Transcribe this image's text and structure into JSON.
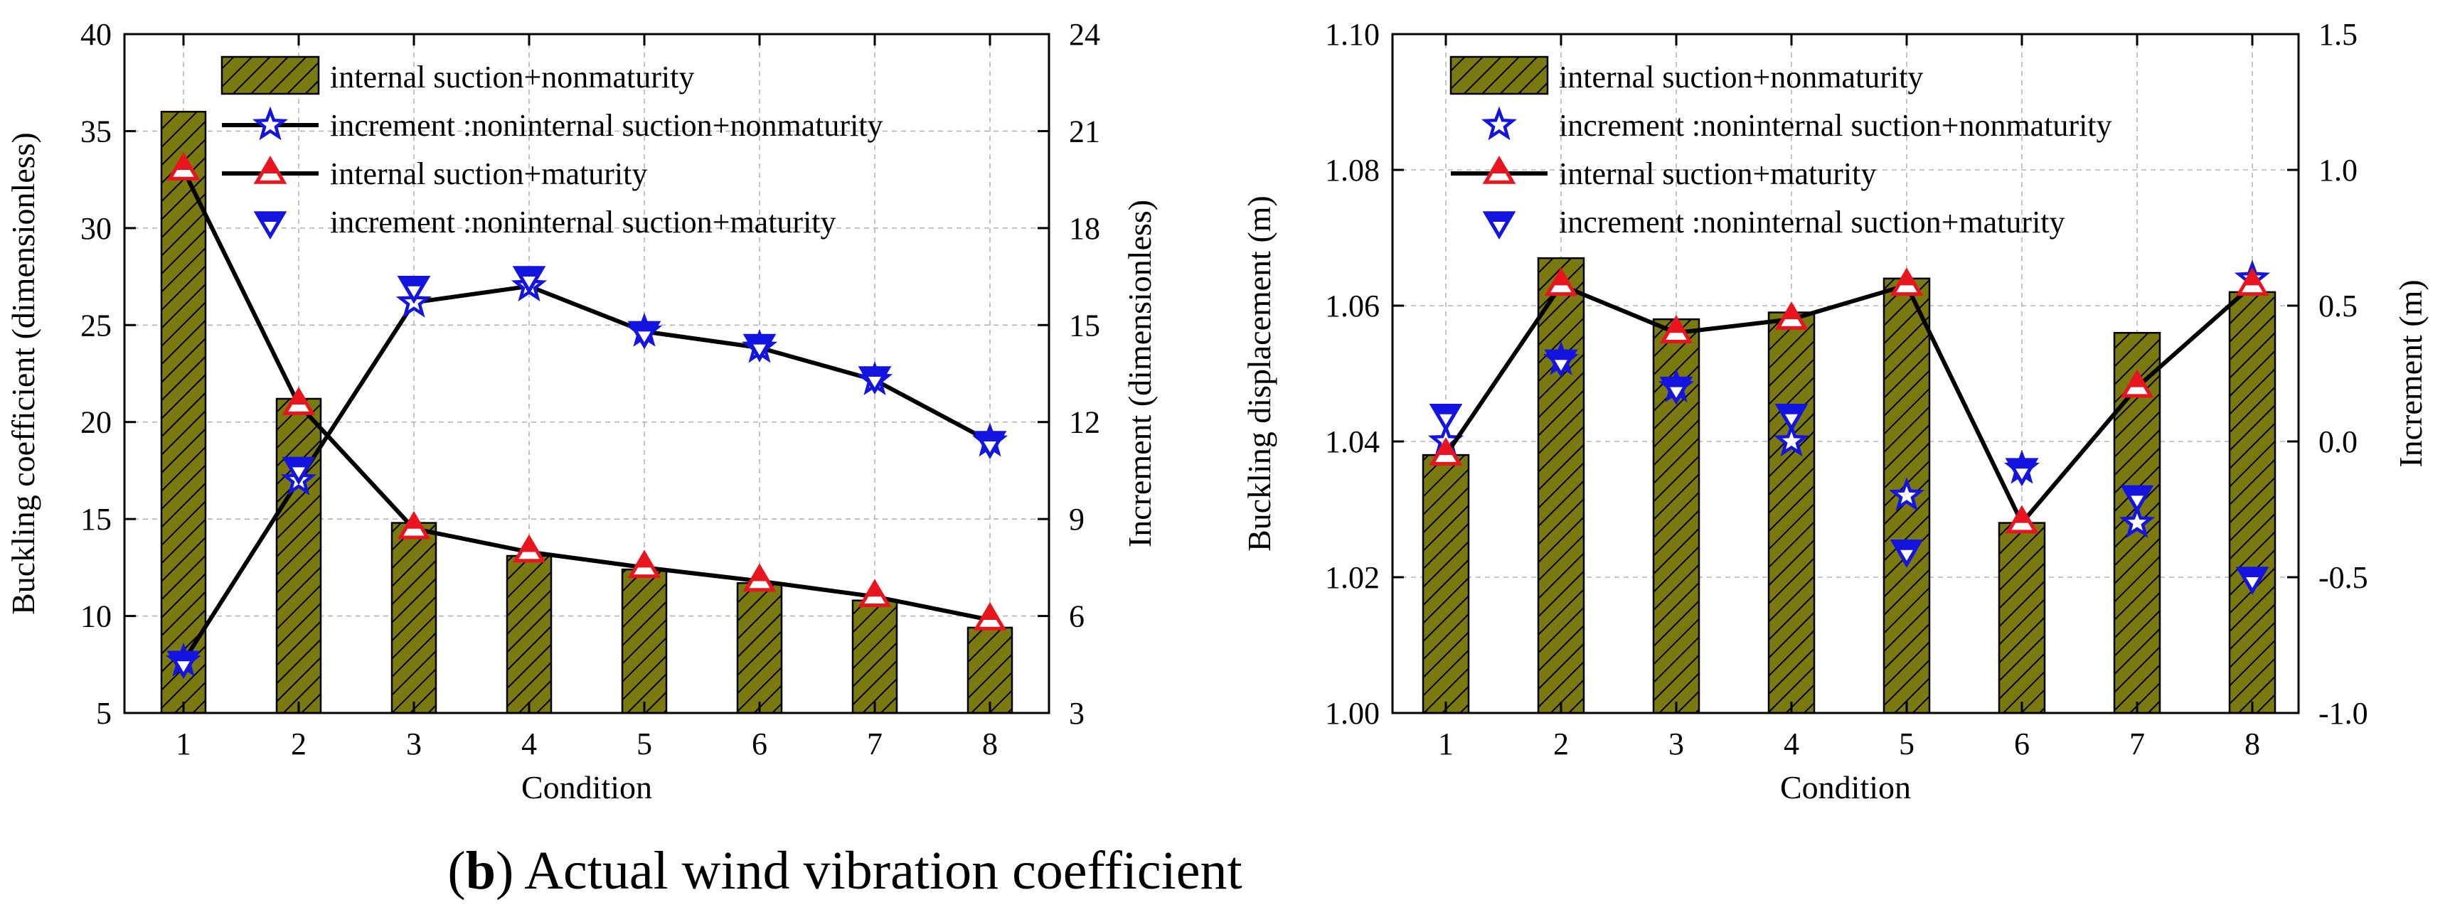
{
  "colors": {
    "bar_fill": "#7a7a10",
    "hatch": "#000000",
    "line": "#000000",
    "triangle_up": "#e8141e",
    "triangle_down": "#1414e0",
    "star": "#1414e0"
  },
  "caption": {
    "letter": "b",
    "open": "(",
    "close": ")",
    "text": " Actual wind vibration coefficient"
  },
  "chart_data": [
    {
      "type": "bar",
      "categories": [
        "1",
        "2",
        "3",
        "4",
        "5",
        "6",
        "7",
        "8"
      ],
      "xlabel": "Condition",
      "ylabel": "Buckling coefficient (dimensionless)",
      "ylabel_right": "Increment (dimensionless)",
      "ylim": [
        5,
        40
      ],
      "yticks": [
        "5",
        "10",
        "15",
        "20",
        "25",
        "30",
        "35",
        "40"
      ],
      "ylim_right": [
        3,
        24
      ],
      "yticks_right": [
        "3",
        "6",
        "9",
        "12",
        "15",
        "18",
        "21",
        "24"
      ],
      "grid": true,
      "legend": [
        "internal suction+nonmaturity",
        "increment :noninternal suction+nonmaturity",
        "internal suction+maturity",
        "increment :noninternal suction+maturity"
      ],
      "series": [
        {
          "name": "internal suction+nonmaturity",
          "kind": "bar",
          "axis": "left",
          "values": [
            36.0,
            21.2,
            14.8,
            13.1,
            12.4,
            11.7,
            10.8,
            9.4
          ]
        },
        {
          "name": "increment :noninternal suction+nonmaturity",
          "kind": "line-star",
          "axis": "right",
          "values": [
            4.6,
            10.2,
            15.7,
            16.2,
            14.8,
            14.3,
            13.3,
            11.4
          ]
        },
        {
          "name": "internal suction+maturity",
          "kind": "line-triangle-up",
          "axis": "left",
          "values": [
            33.0,
            20.9,
            14.5,
            13.3,
            12.5,
            11.8,
            11.0,
            9.8
          ]
        },
        {
          "name": "increment :noninternal suction+maturity",
          "kind": "triangle-down",
          "axis": "right",
          "values": [
            4.6,
            10.6,
            16.2,
            16.5,
            14.8,
            14.4,
            13.4,
            11.4
          ]
        }
      ]
    },
    {
      "type": "bar",
      "categories": [
        "1",
        "2",
        "3",
        "4",
        "5",
        "6",
        "7",
        "8"
      ],
      "xlabel": "Condition",
      "ylabel": "Buckling displacement (m)",
      "ylabel_right": "Increment (m)",
      "ylim": [
        1.0,
        1.1
      ],
      "yticks": [
        "1.00",
        "1.02",
        "1.04",
        "1.06",
        "1.08",
        "1.10"
      ],
      "ylim_right": [
        -1.0,
        1.5
      ],
      "yticks_right": [
        "-1.0",
        "-0.5",
        "0.0",
        "0.5",
        "1.0",
        "1.5"
      ],
      "grid": true,
      "legend": [
        "internal suction+nonmaturity",
        "increment :noninternal suction+nonmaturity",
        "internal suction+maturity",
        "increment :noninternal suction+maturity"
      ],
      "series": [
        {
          "name": "internal suction+nonmaturity",
          "kind": "bar",
          "axis": "left",
          "values": [
            1.038,
            1.067,
            1.058,
            1.059,
            1.064,
            1.028,
            1.056,
            1.062
          ]
        },
        {
          "name": "increment :noninternal suction+nonmaturity",
          "kind": "star",
          "axis": "right",
          "values": [
            0.0,
            0.3,
            0.2,
            0.0,
            -0.2,
            -0.1,
            -0.3,
            0.6
          ]
        },
        {
          "name": "internal suction+maturity",
          "kind": "line-triangle-up",
          "axis": "left",
          "values": [
            1.038,
            1.063,
            1.056,
            1.058,
            1.063,
            1.028,
            1.048,
            1.063
          ]
        },
        {
          "name": "increment :noninternal suction+maturity",
          "kind": "triangle-down",
          "axis": "right",
          "values": [
            0.1,
            0.3,
            0.2,
            0.1,
            -0.4,
            -0.1,
            -0.2,
            -0.5
          ]
        }
      ]
    }
  ]
}
